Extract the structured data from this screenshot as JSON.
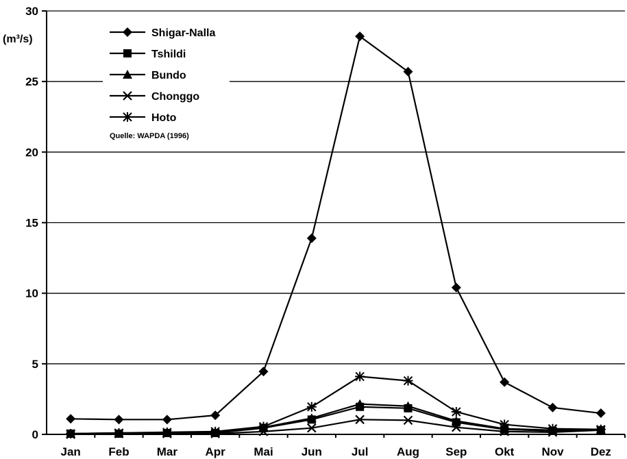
{
  "chart_data": {
    "type": "line",
    "ylabel": "(m³/s)",
    "ylim": [
      0,
      30
    ],
    "yticks": [
      0,
      5,
      10,
      15,
      20,
      25,
      30
    ],
    "grid": true,
    "legend_position": "top-left",
    "note": "Quelle: WAPDA (1996)",
    "categories": [
      "Jan",
      "Feb",
      "Mar",
      "Apr",
      "Mai",
      "Jun",
      "Jul",
      "Aug",
      "Sep",
      "Okt",
      "Nov",
      "Dez"
    ],
    "series": [
      {
        "name": "Shigar-Nalla",
        "marker": "diamond",
        "values": [
          1.1,
          1.05,
          1.05,
          1.35,
          4.45,
          13.9,
          28.2,
          25.7,
          10.4,
          3.7,
          1.9,
          1.5
        ]
      },
      {
        "name": "Tshildi",
        "marker": "square",
        "values": [
          0.05,
          0.05,
          0.1,
          0.1,
          0.45,
          1.05,
          1.95,
          1.85,
          0.85,
          0.35,
          0.25,
          0.3
        ]
      },
      {
        "name": "Bundo",
        "marker": "triangle",
        "values": [
          0.05,
          0.1,
          0.1,
          0.15,
          0.5,
          1.15,
          2.15,
          2.0,
          0.95,
          0.4,
          0.3,
          0.35
        ]
      },
      {
        "name": "Chonggo",
        "marker": "x",
        "values": [
          0.0,
          0.05,
          0.05,
          0.05,
          0.2,
          0.45,
          1.05,
          1.0,
          0.5,
          0.2,
          0.15,
          0.3
        ]
      },
      {
        "name": "Hoto",
        "marker": "asterisk",
        "values": [
          0.05,
          0.1,
          0.15,
          0.2,
          0.55,
          1.95,
          4.1,
          3.8,
          1.6,
          0.7,
          0.4,
          0.35
        ]
      }
    ]
  }
}
